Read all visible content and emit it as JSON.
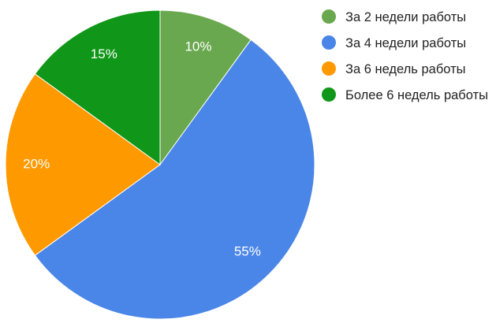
{
  "chart_data": {
    "type": "pie",
    "categories": [
      "За 2 недели работы",
      "За 4 недели работы",
      "За 6 недель работы",
      "Более 6 недель работы"
    ],
    "values": [
      10,
      55,
      20,
      15
    ],
    "value_labels": [
      "10%",
      "55%",
      "20%",
      "15%"
    ],
    "colors": [
      "#6aa84f",
      "#4a86e8",
      "#ff9900",
      "#109618"
    ],
    "legend": "right"
  }
}
